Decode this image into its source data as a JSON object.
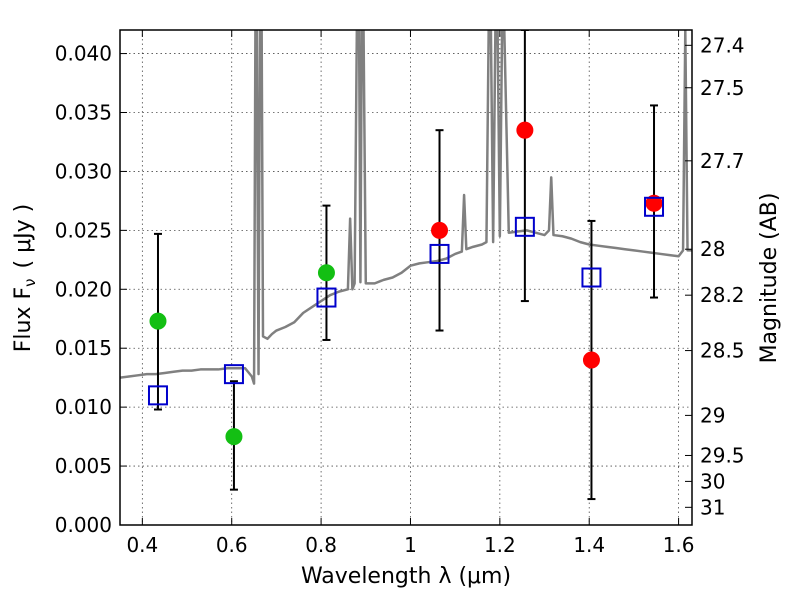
{
  "chart_data": {
    "type": "scatter",
    "xlabel": "Wavelength  λ (μm)",
    "ylabel": "Flux  F",
    "ylabel_sub": "ν",
    "ylabel_unit": "(  μJy )",
    "y2label": "Magnitude (AB)",
    "xlim": [
      0.35,
      1.63
    ],
    "ylim": [
      0.0,
      0.042
    ],
    "x_ticks": [
      0.4,
      0.6,
      0.8,
      1.0,
      1.2,
      1.4,
      1.6
    ],
    "x_tick_labels": [
      "0.4",
      "0.6",
      "0.8",
      "1",
      "1.2",
      "1.4",
      "1.6"
    ],
    "y_ticks": [
      0.0,
      0.005,
      0.01,
      0.015,
      0.02,
      0.025,
      0.03,
      0.035,
      0.04
    ],
    "y_tick_labels": [
      "0.000",
      "0.005",
      "0.010",
      "0.015",
      "0.020",
      "0.025",
      "0.030",
      "0.035",
      "0.040"
    ],
    "y2_ticks": [
      {
        "label": "27.4",
        "flux": 0.0407
      },
      {
        "label": "27.5",
        "flux": 0.0371
      },
      {
        "label": "27.7",
        "flux": 0.0309
      },
      {
        "label": "28",
        "flux": 0.0234
      },
      {
        "label": "28.2",
        "flux": 0.0195
      },
      {
        "label": "28.5",
        "flux": 0.0148
      },
      {
        "label": "29",
        "flux": 0.0093
      },
      {
        "label": "29.5",
        "flux": 0.0059
      },
      {
        "label": "30",
        "flux": 0.0037
      },
      {
        "label": "31",
        "flux": 0.0015
      }
    ],
    "grid": true,
    "series": [
      {
        "name": "model-spectrum",
        "kind": "line",
        "color": "#808080",
        "x": [
          0.35,
          0.37,
          0.39,
          0.41,
          0.43,
          0.45,
          0.47,
          0.49,
          0.51,
          0.53,
          0.55,
          0.57,
          0.59,
          0.61,
          0.63,
          0.645,
          0.65,
          0.653,
          0.656,
          0.66,
          0.663,
          0.667,
          0.67,
          0.68,
          0.69,
          0.7,
          0.72,
          0.74,
          0.76,
          0.78,
          0.8,
          0.82,
          0.84,
          0.86,
          0.865,
          0.87,
          0.875,
          0.88,
          0.885,
          0.888,
          0.891,
          0.895,
          0.9,
          0.92,
          0.94,
          0.96,
          0.98,
          1.0,
          1.02,
          1.04,
          1.06,
          1.08,
          1.1,
          1.115,
          1.12,
          1.125,
          1.14,
          1.16,
          1.17,
          1.175,
          1.18,
          1.185,
          1.19,
          1.195,
          1.2,
          1.205,
          1.21,
          1.22,
          1.24,
          1.26,
          1.28,
          1.3,
          1.31,
          1.315,
          1.32,
          1.34,
          1.36,
          1.38,
          1.4,
          1.42,
          1.44,
          1.46,
          1.48,
          1.5,
          1.52,
          1.54,
          1.56,
          1.58,
          1.6,
          1.61,
          1.615,
          1.62,
          1.63
        ],
        "y": [
          0.0125,
          0.0126,
          0.0127,
          0.0128,
          0.0128,
          0.0129,
          0.013,
          0.0131,
          0.0131,
          0.0132,
          0.0132,
          0.0132,
          0.0133,
          0.0133,
          0.0133,
          0.0126,
          0.012,
          0.042,
          0.042,
          0.0128,
          0.042,
          0.042,
          0.016,
          0.0158,
          0.0162,
          0.0165,
          0.0168,
          0.0172,
          0.018,
          0.0185,
          0.019,
          0.0195,
          0.0198,
          0.02,
          0.026,
          0.02,
          0.0205,
          0.042,
          0.042,
          0.0206,
          0.042,
          0.042,
          0.0205,
          0.0205,
          0.0208,
          0.021,
          0.0214,
          0.022,
          0.0222,
          0.0223,
          0.0224,
          0.0226,
          0.023,
          0.0232,
          0.028,
          0.0234,
          0.0236,
          0.0238,
          0.024,
          0.042,
          0.042,
          0.024,
          0.042,
          0.042,
          0.0245,
          0.042,
          0.042,
          0.0248,
          0.0249,
          0.025,
          0.0248,
          0.0246,
          0.025,
          0.0295,
          0.0246,
          0.0245,
          0.0243,
          0.024,
          0.0238,
          0.0237,
          0.0236,
          0.0235,
          0.0234,
          0.0233,
          0.0232,
          0.0231,
          0.023,
          0.0229,
          0.0228,
          0.0233,
          0.042,
          0.0233,
          0.0233
        ]
      },
      {
        "name": "observed-green",
        "kind": "marker",
        "marker": "circle",
        "color": "#13bf13",
        "x": [
          0.435,
          0.605,
          0.812
        ],
        "y": [
          0.0173,
          0.0075,
          0.0214
        ]
      },
      {
        "name": "observed-red",
        "kind": "marker",
        "marker": "circle",
        "color": "#ff0000",
        "x": [
          1.065,
          1.256,
          1.405,
          1.545
        ],
        "y": [
          0.025,
          0.0335,
          0.014,
          0.0273
        ]
      },
      {
        "name": "model-photometry",
        "kind": "marker",
        "marker": "open-square",
        "color": "#0000cc",
        "x": [
          0.435,
          0.605,
          0.812,
          1.065,
          1.256,
          1.405,
          1.545
        ],
        "y": [
          0.011,
          0.0128,
          0.0193,
          0.023,
          0.0253,
          0.021,
          0.027
        ]
      }
    ],
    "error_bars": {
      "color": "#000000",
      "x": [
        0.435,
        0.605,
        0.812,
        1.065,
        1.256,
        1.405,
        1.545
      ],
      "ylow": [
        0.0098,
        0.003,
        0.0157,
        0.0165,
        0.019,
        0.0022,
        0.0193
      ],
      "yhigh": [
        0.0247,
        0.0122,
        0.0271,
        0.0335,
        0.042,
        0.0258,
        0.0356
      ]
    }
  }
}
